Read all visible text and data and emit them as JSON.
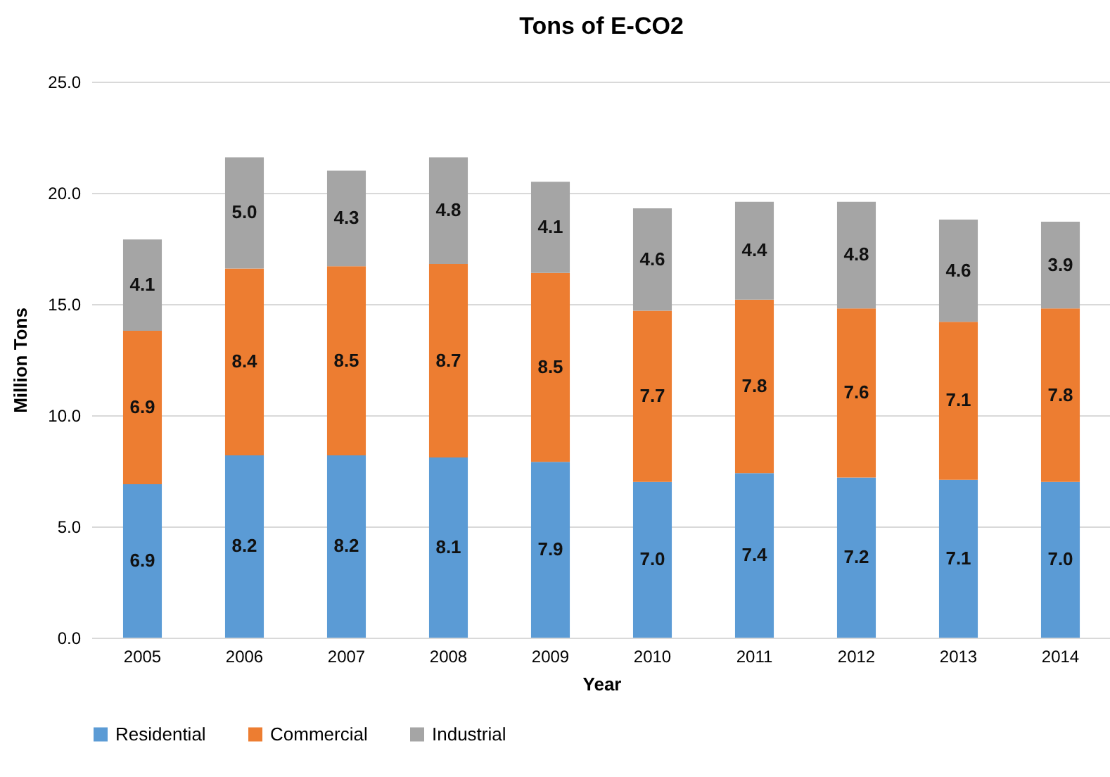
{
  "chart_data": {
    "type": "bar",
    "title": "Tons of E-CO2",
    "xlabel": "Year",
    "ylabel": "Million Tons",
    "categories": [
      "2005",
      "2006",
      "2007",
      "2008",
      "2009",
      "2010",
      "2011",
      "2012",
      "2013",
      "2014"
    ],
    "series": [
      {
        "name": "Residential",
        "color": "#5b9bd5",
        "values": [
          6.9,
          8.2,
          8.2,
          8.1,
          7.9,
          7.0,
          7.4,
          7.2,
          7.1,
          7.0
        ],
        "value_labels": [
          "6.9",
          "8.2",
          "8.2",
          "8.1",
          "7.9",
          "7.0",
          "7.4",
          "7.2",
          "7.1",
          "7.0"
        ]
      },
      {
        "name": "Commercial",
        "color": "#ed7d31",
        "values": [
          6.9,
          8.4,
          8.5,
          8.7,
          8.5,
          7.7,
          7.8,
          7.6,
          7.1,
          7.8
        ],
        "value_labels": [
          "6.9",
          "8.4",
          "8.5",
          "8.7",
          "8.5",
          "7.7",
          "7.8",
          "7.6",
          "7.1",
          "7.8"
        ]
      },
      {
        "name": "Industrial",
        "color": "#a5a5a5",
        "values": [
          4.1,
          5.0,
          4.3,
          4.8,
          4.1,
          4.6,
          4.4,
          4.8,
          4.6,
          3.9
        ],
        "value_labels": [
          "4.1",
          "5.0",
          "4.3",
          "4.8",
          "4.1",
          "4.6",
          "4.4",
          "4.8",
          "4.6",
          "3.9"
        ]
      }
    ],
    "stacked": true,
    "ylim": [
      0,
      25
    ],
    "yticks": [
      {
        "value": 0,
        "label": "0.0"
      },
      {
        "value": 5,
        "label": "5.0"
      },
      {
        "value": 10,
        "label": "10.0"
      },
      {
        "value": 15,
        "label": "15.0"
      },
      {
        "value": 20,
        "label": "20.0"
      },
      {
        "value": 25,
        "label": "25.0"
      }
    ],
    "grid": "y",
    "legend": "bottom"
  }
}
